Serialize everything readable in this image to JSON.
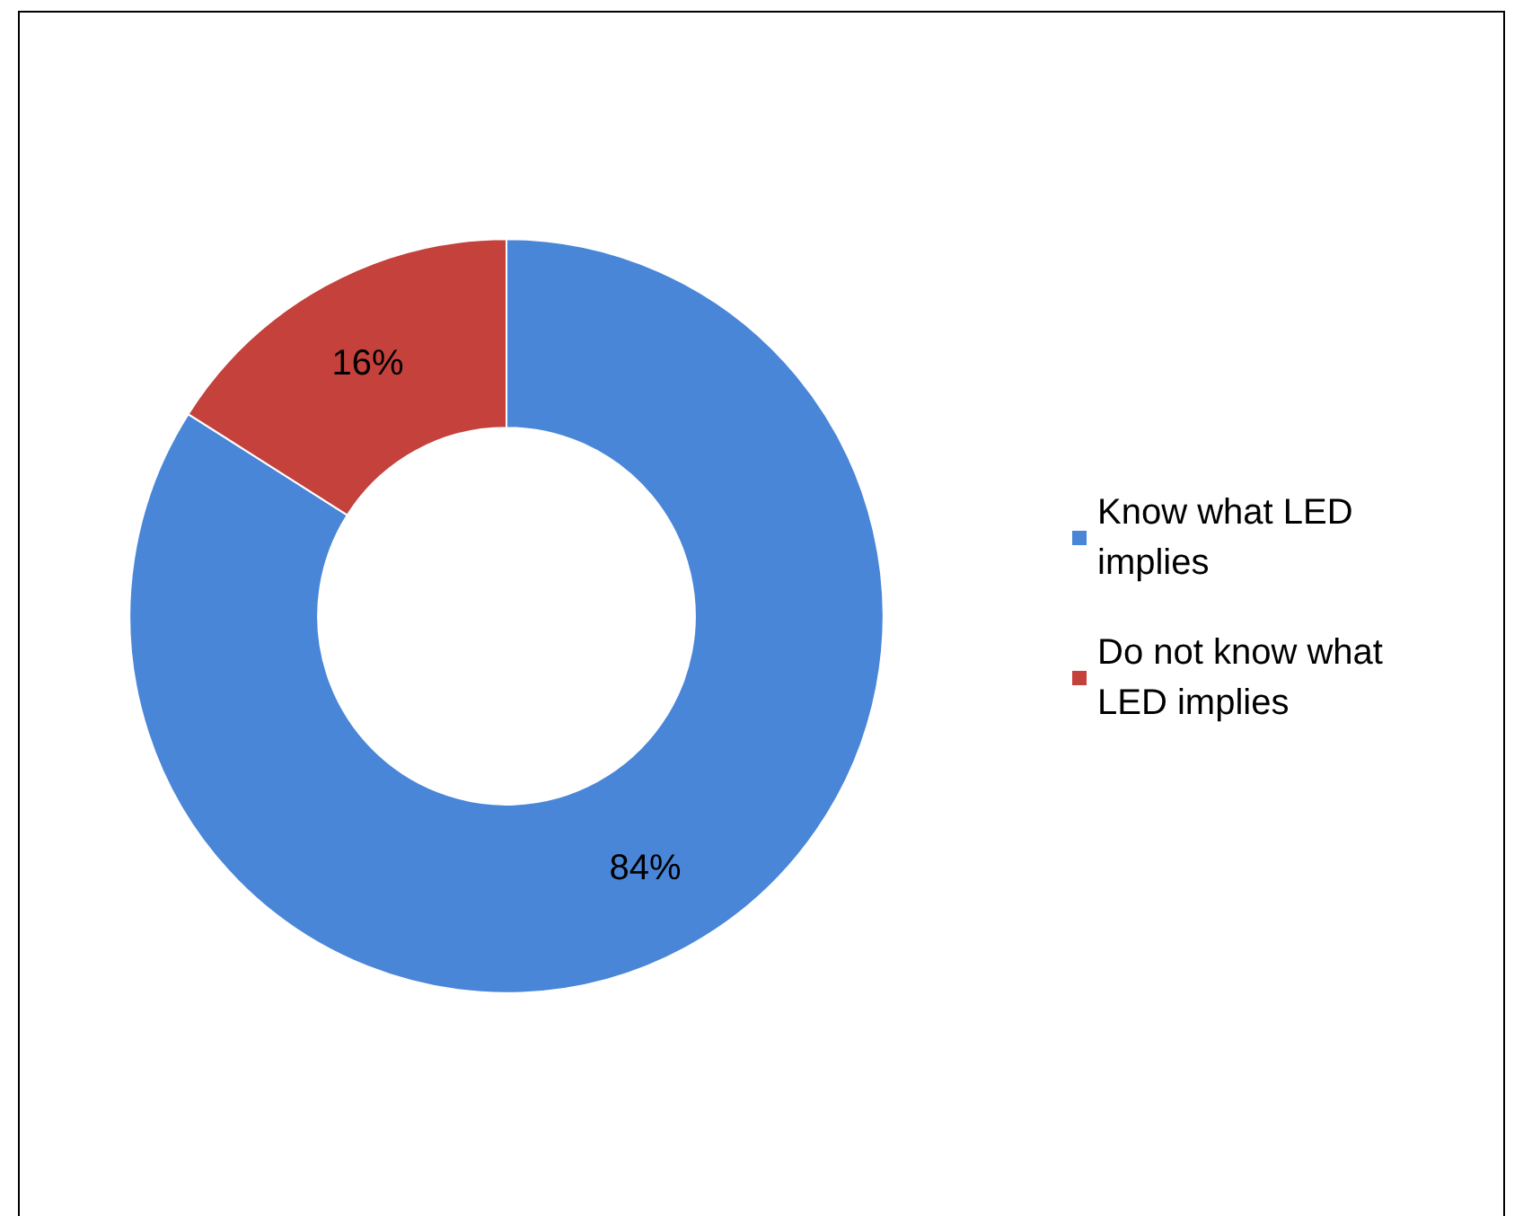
{
  "chart_data": {
    "type": "donut",
    "categories": [
      "Know what LED implies",
      "Do not know what LED implies"
    ],
    "values": [
      84,
      16
    ],
    "colors": [
      "#4a86d8",
      "#c4413c"
    ],
    "value_labels": [
      "84%",
      "16%"
    ],
    "legend": "right"
  }
}
